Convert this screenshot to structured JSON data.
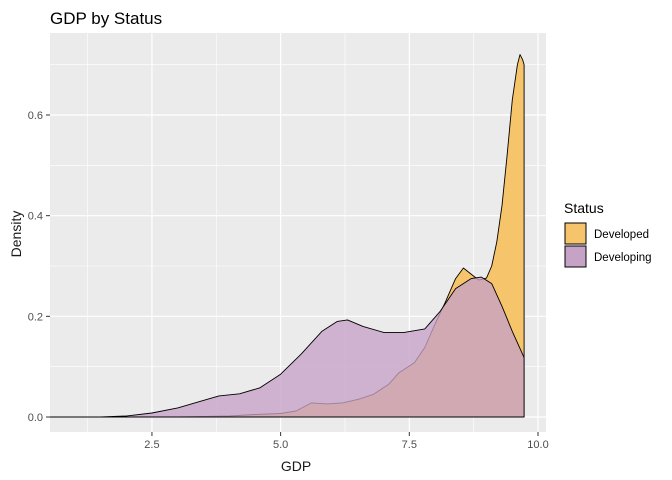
{
  "chart_data": {
    "type": "area",
    "title": "GDP by Status",
    "xlabel": "GDP",
    "ylabel": "Density",
    "xlim": [
      0.5,
      10.0
    ],
    "ylim": [
      0,
      0.74
    ],
    "x_ticks": [
      2.5,
      5.0,
      7.5,
      10.0
    ],
    "x_tick_labels": [
      "2.5",
      "5.0",
      "7.5",
      "10.0"
    ],
    "y_ticks": [
      0.0,
      0.2,
      0.4,
      0.6
    ],
    "y_tick_labels": [
      "0.0",
      "0.2",
      "0.4",
      "0.6"
    ],
    "grid": true,
    "legend": {
      "title": "Status",
      "placement": "right"
    },
    "series": [
      {
        "name": "Developed",
        "color": "#f5c46b",
        "points": [
          [
            0.5,
            0.0
          ],
          [
            2.0,
            0.0
          ],
          [
            3.0,
            0.0
          ],
          [
            4.0,
            0.002
          ],
          [
            4.5,
            0.005
          ],
          [
            5.0,
            0.007
          ],
          [
            5.3,
            0.012
          ],
          [
            5.6,
            0.028
          ],
          [
            5.9,
            0.026
          ],
          [
            6.2,
            0.028
          ],
          [
            6.5,
            0.035
          ],
          [
            6.8,
            0.045
          ],
          [
            7.1,
            0.065
          ],
          [
            7.3,
            0.088
          ],
          [
            7.6,
            0.108
          ],
          [
            7.8,
            0.138
          ],
          [
            8.0,
            0.185
          ],
          [
            8.2,
            0.228
          ],
          [
            8.4,
            0.275
          ],
          [
            8.55,
            0.296
          ],
          [
            8.7,
            0.284
          ],
          [
            8.85,
            0.272
          ],
          [
            9.0,
            0.276
          ],
          [
            9.1,
            0.3
          ],
          [
            9.2,
            0.348
          ],
          [
            9.3,
            0.42
          ],
          [
            9.4,
            0.52
          ],
          [
            9.5,
            0.63
          ],
          [
            9.6,
            0.7
          ],
          [
            9.65,
            0.72
          ],
          [
            9.7,
            0.71
          ],
          [
            9.73,
            0.7
          ]
        ]
      },
      {
        "name": "Developing",
        "color": "#c7a2c7",
        "points": [
          [
            0.5,
            0.0
          ],
          [
            1.5,
            0.0
          ],
          [
            2.0,
            0.002
          ],
          [
            2.5,
            0.008
          ],
          [
            3.0,
            0.018
          ],
          [
            3.5,
            0.033
          ],
          [
            3.8,
            0.042
          ],
          [
            4.2,
            0.046
          ],
          [
            4.6,
            0.058
          ],
          [
            5.0,
            0.085
          ],
          [
            5.4,
            0.125
          ],
          [
            5.8,
            0.17
          ],
          [
            6.1,
            0.19
          ],
          [
            6.3,
            0.193
          ],
          [
            6.6,
            0.18
          ],
          [
            7.0,
            0.168
          ],
          [
            7.4,
            0.168
          ],
          [
            7.8,
            0.175
          ],
          [
            8.1,
            0.21
          ],
          [
            8.4,
            0.255
          ],
          [
            8.7,
            0.275
          ],
          [
            8.9,
            0.278
          ],
          [
            9.1,
            0.265
          ],
          [
            9.3,
            0.22
          ],
          [
            9.5,
            0.17
          ],
          [
            9.73,
            0.118
          ]
        ]
      }
    ],
    "colors": {
      "overlap": "#cc8a7f",
      "panel": "#ebebeb",
      "grid": "#ffffff"
    }
  }
}
